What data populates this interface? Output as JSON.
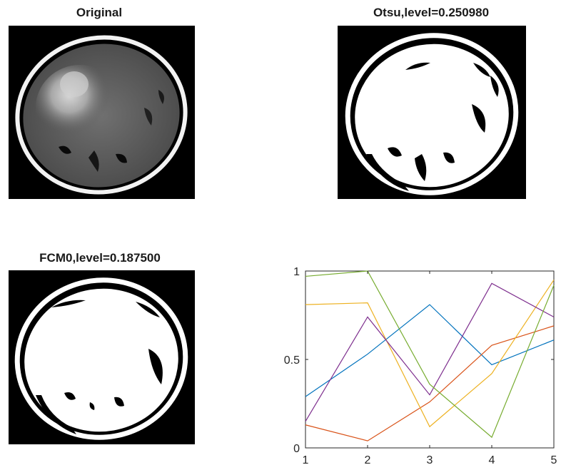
{
  "figure": {
    "panels": [
      {
        "id": "original",
        "title": "Original"
      },
      {
        "id": "otsu",
        "title": "Otsu,level=0.250980"
      },
      {
        "id": "fcm",
        "title": "FCM0,level=0.187500"
      }
    ]
  },
  "chart_data": {
    "type": "line",
    "x": [
      1,
      2,
      3,
      4,
      5
    ],
    "xlim": [
      1,
      5
    ],
    "ylim": [
      0,
      1
    ],
    "xticks": [
      "1",
      "2",
      "3",
      "4",
      "5"
    ],
    "yticks": [
      "0",
      "0.5",
      "1"
    ],
    "grid": false,
    "series": [
      {
        "color": "#0072bd",
        "values": [
          0.29,
          0.53,
          0.81,
          0.47,
          0.61
        ]
      },
      {
        "color": "#d95319",
        "values": [
          0.13,
          0.04,
          0.26,
          0.58,
          0.69
        ]
      },
      {
        "color": "#edb120",
        "values": [
          0.81,
          0.82,
          0.12,
          0.42,
          0.95
        ]
      },
      {
        "color": "#7e2f8e",
        "values": [
          0.15,
          0.74,
          0.3,
          0.93,
          0.74
        ]
      },
      {
        "color": "#77ac30",
        "values": [
          0.97,
          1.0,
          0.36,
          0.06,
          0.92
        ]
      }
    ]
  }
}
